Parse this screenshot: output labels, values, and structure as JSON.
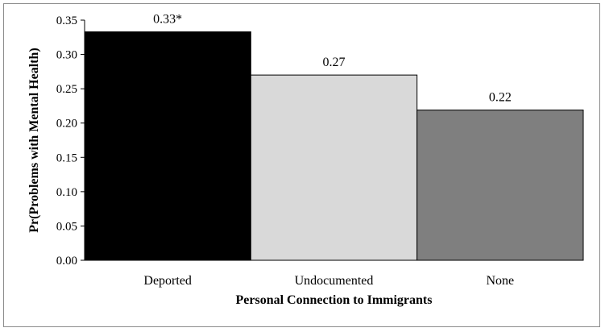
{
  "chart_data": {
    "type": "bar",
    "title": "",
    "xlabel": "Personal Connection to Immigrants",
    "ylabel": "Pr(Problems with Mental Health)",
    "categories": [
      "Deported",
      "Undocumented",
      "None"
    ],
    "values": [
      0.333,
      0.27,
      0.219
    ],
    "data_labels": [
      "0.33*",
      "0.27",
      "0.22"
    ],
    "ylim": [
      0,
      0.35
    ],
    "yticks": [
      "0.00",
      "0.05",
      "0.10",
      "0.15",
      "0.20",
      "0.25",
      "0.30",
      "0.35"
    ],
    "ytick_values": [
      0,
      0.05,
      0.1,
      0.15,
      0.2,
      0.25,
      0.3,
      0.35
    ],
    "colors": [
      "#000000",
      "#d9d9d9",
      "#7f7f7f"
    ],
    "grid": false,
    "legend": "none"
  }
}
